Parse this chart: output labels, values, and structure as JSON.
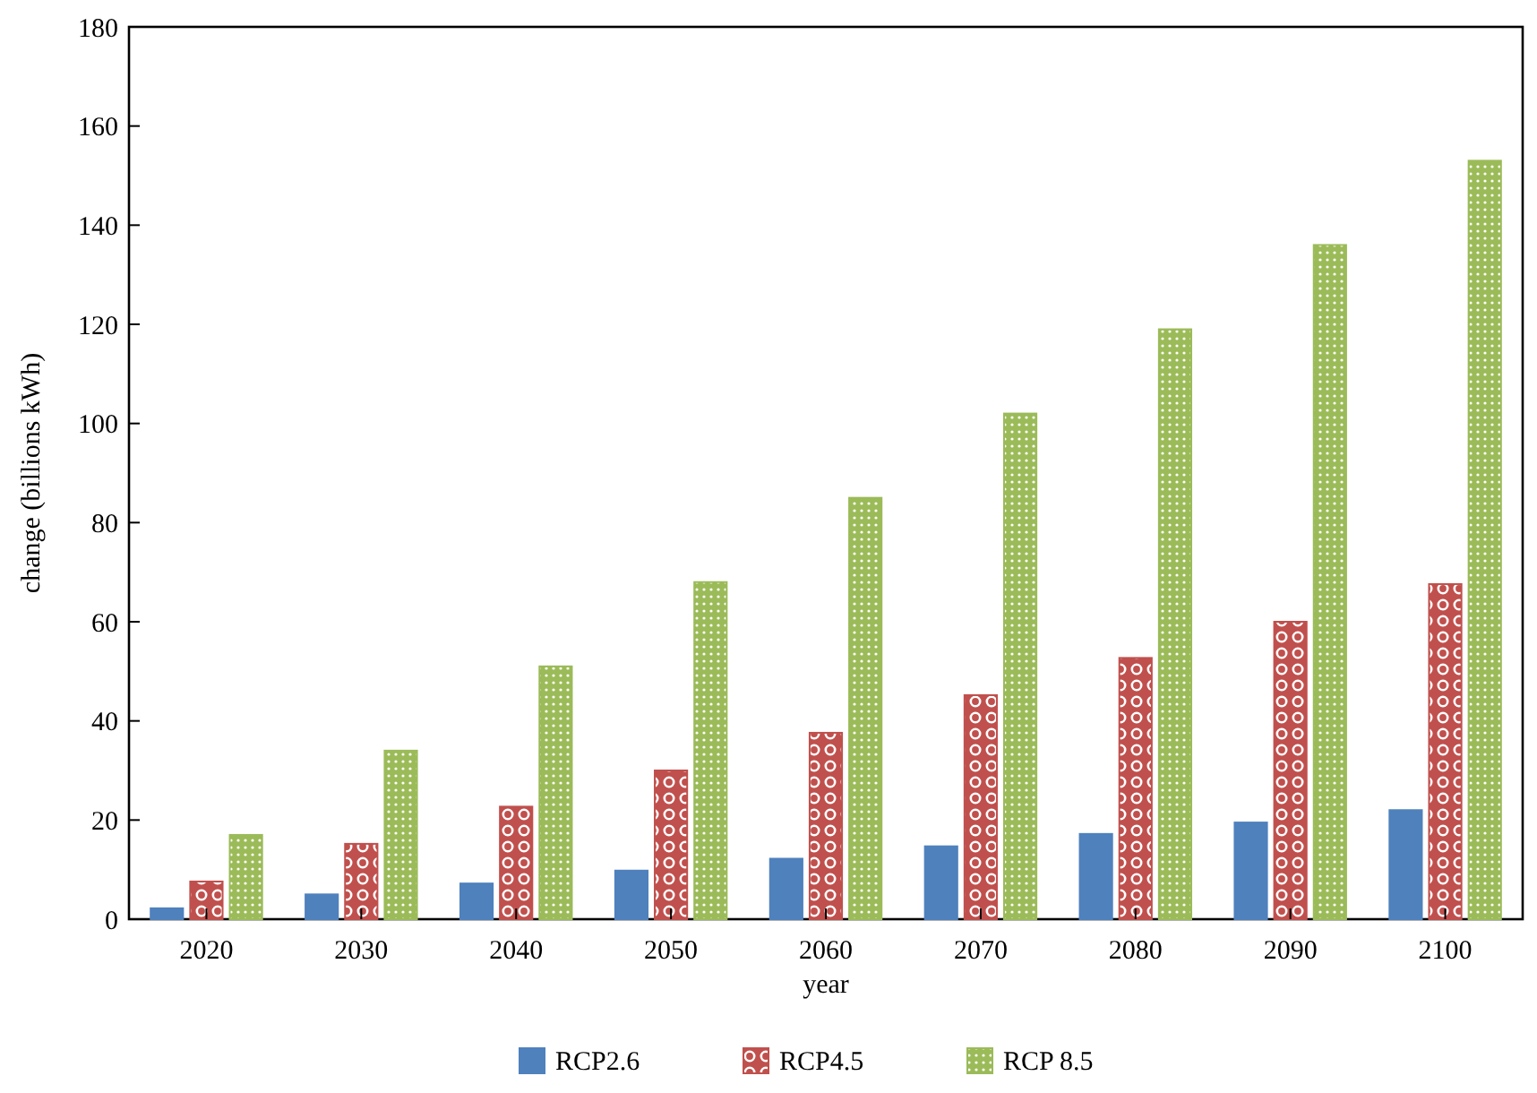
{
  "chart_data": {
    "type": "bar",
    "xlabel": "year",
    "ylabel": "change (billions kWh)",
    "categories": [
      "2020",
      "2030",
      "2040",
      "2050",
      "2060",
      "2070",
      "2080",
      "2090",
      "2100"
    ],
    "series": [
      {
        "name": "RCP2.6",
        "color": "#4f81bd",
        "values": [
          2.2,
          5,
          7.2,
          9.8,
          12.2,
          14.7,
          17.2,
          19.5,
          22
        ]
      },
      {
        "name": "RCP4.5",
        "color": "#c0504d",
        "values": [
          7.6,
          15.2,
          22.7,
          30,
          37.6,
          45.2,
          52.7,
          60,
          67.6
        ]
      },
      {
        "name": "RCP 8.5",
        "color": "#9bbb59",
        "values": [
          17,
          34,
          51,
          68,
          85,
          102,
          119,
          136,
          153
        ]
      }
    ],
    "ylim": [
      0,
      180
    ],
    "yticks": [
      0,
      20,
      40,
      60,
      80,
      100,
      120,
      140,
      160,
      180
    ],
    "grid": false,
    "legend": "bottom"
  }
}
